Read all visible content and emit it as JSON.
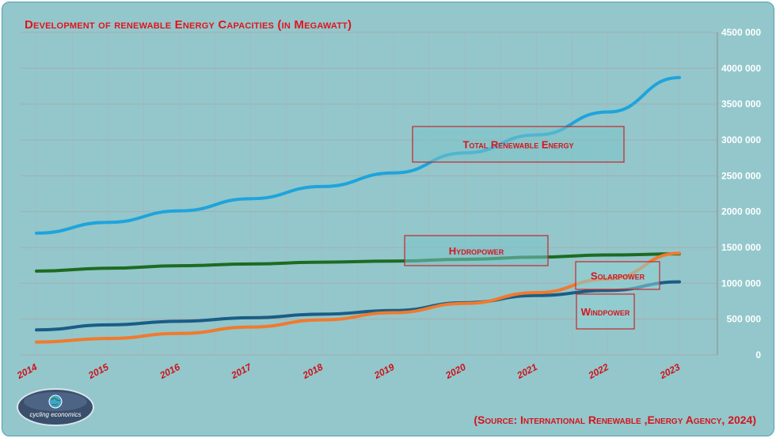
{
  "header": {
    "title": "Development of renewable Energy Capacities (in Megawatt)"
  },
  "footer": {
    "source": "(Source: International Renewable ,Energy Agency, 2024)"
  },
  "logo": {
    "text": "cycling economics",
    "icon": "globe-icon"
  },
  "colors": {
    "background": "#93c7cb",
    "title": "#e0141e",
    "total": "#1ea4dc",
    "hydro": "#1d6b22",
    "solar": "#f07a2e",
    "wind": "#1a5d86"
  },
  "chart_data": {
    "type": "line",
    "title": "Development of renewable Energy Capacities (in Megawatt)",
    "x": [
      "2014",
      "2015",
      "2016",
      "2017",
      "2018",
      "2019",
      "2020",
      "2021",
      "2022",
      "2023"
    ],
    "ylim": [
      0,
      4500000
    ],
    "yticks": [
      "0",
      "500 000",
      "1000 000",
      "1500 000",
      "2000 000",
      "2500 000",
      "3000 000",
      "3500 000",
      "4000 000",
      "4500 000"
    ],
    "y_axis_position": "right",
    "grid": true,
    "series": [
      {
        "name": "Total Renewable Energy",
        "color": "#1ea4dc",
        "values": [
          1700000,
          1850000,
          2010000,
          2180000,
          2350000,
          2540000,
          2820000,
          3070000,
          3390000,
          3870000
        ]
      },
      {
        "name": "Hydropower",
        "color": "#1d6b22",
        "values": [
          1170000,
          1210000,
          1245000,
          1270000,
          1295000,
          1310000,
          1335000,
          1365000,
          1395000,
          1410000
        ]
      },
      {
        "name": "Solarpower",
        "color": "#f07a2e",
        "values": [
          180000,
          230000,
          300000,
          390000,
          490000,
          590000,
          720000,
          870000,
          1060000,
          1420000
        ]
      },
      {
        "name": "Windpower",
        "color": "#1a5d86",
        "values": [
          350000,
          420000,
          470000,
          520000,
          570000,
          620000,
          730000,
          830000,
          900000,
          1020000
        ]
      }
    ],
    "annotations": [
      {
        "series": 0,
        "text": "Total Renewable Energy"
      },
      {
        "series": 1,
        "text": "Hydropower"
      },
      {
        "series": 2,
        "text": "Solarpower"
      },
      {
        "series": 3,
        "text": "Windpower"
      }
    ]
  }
}
